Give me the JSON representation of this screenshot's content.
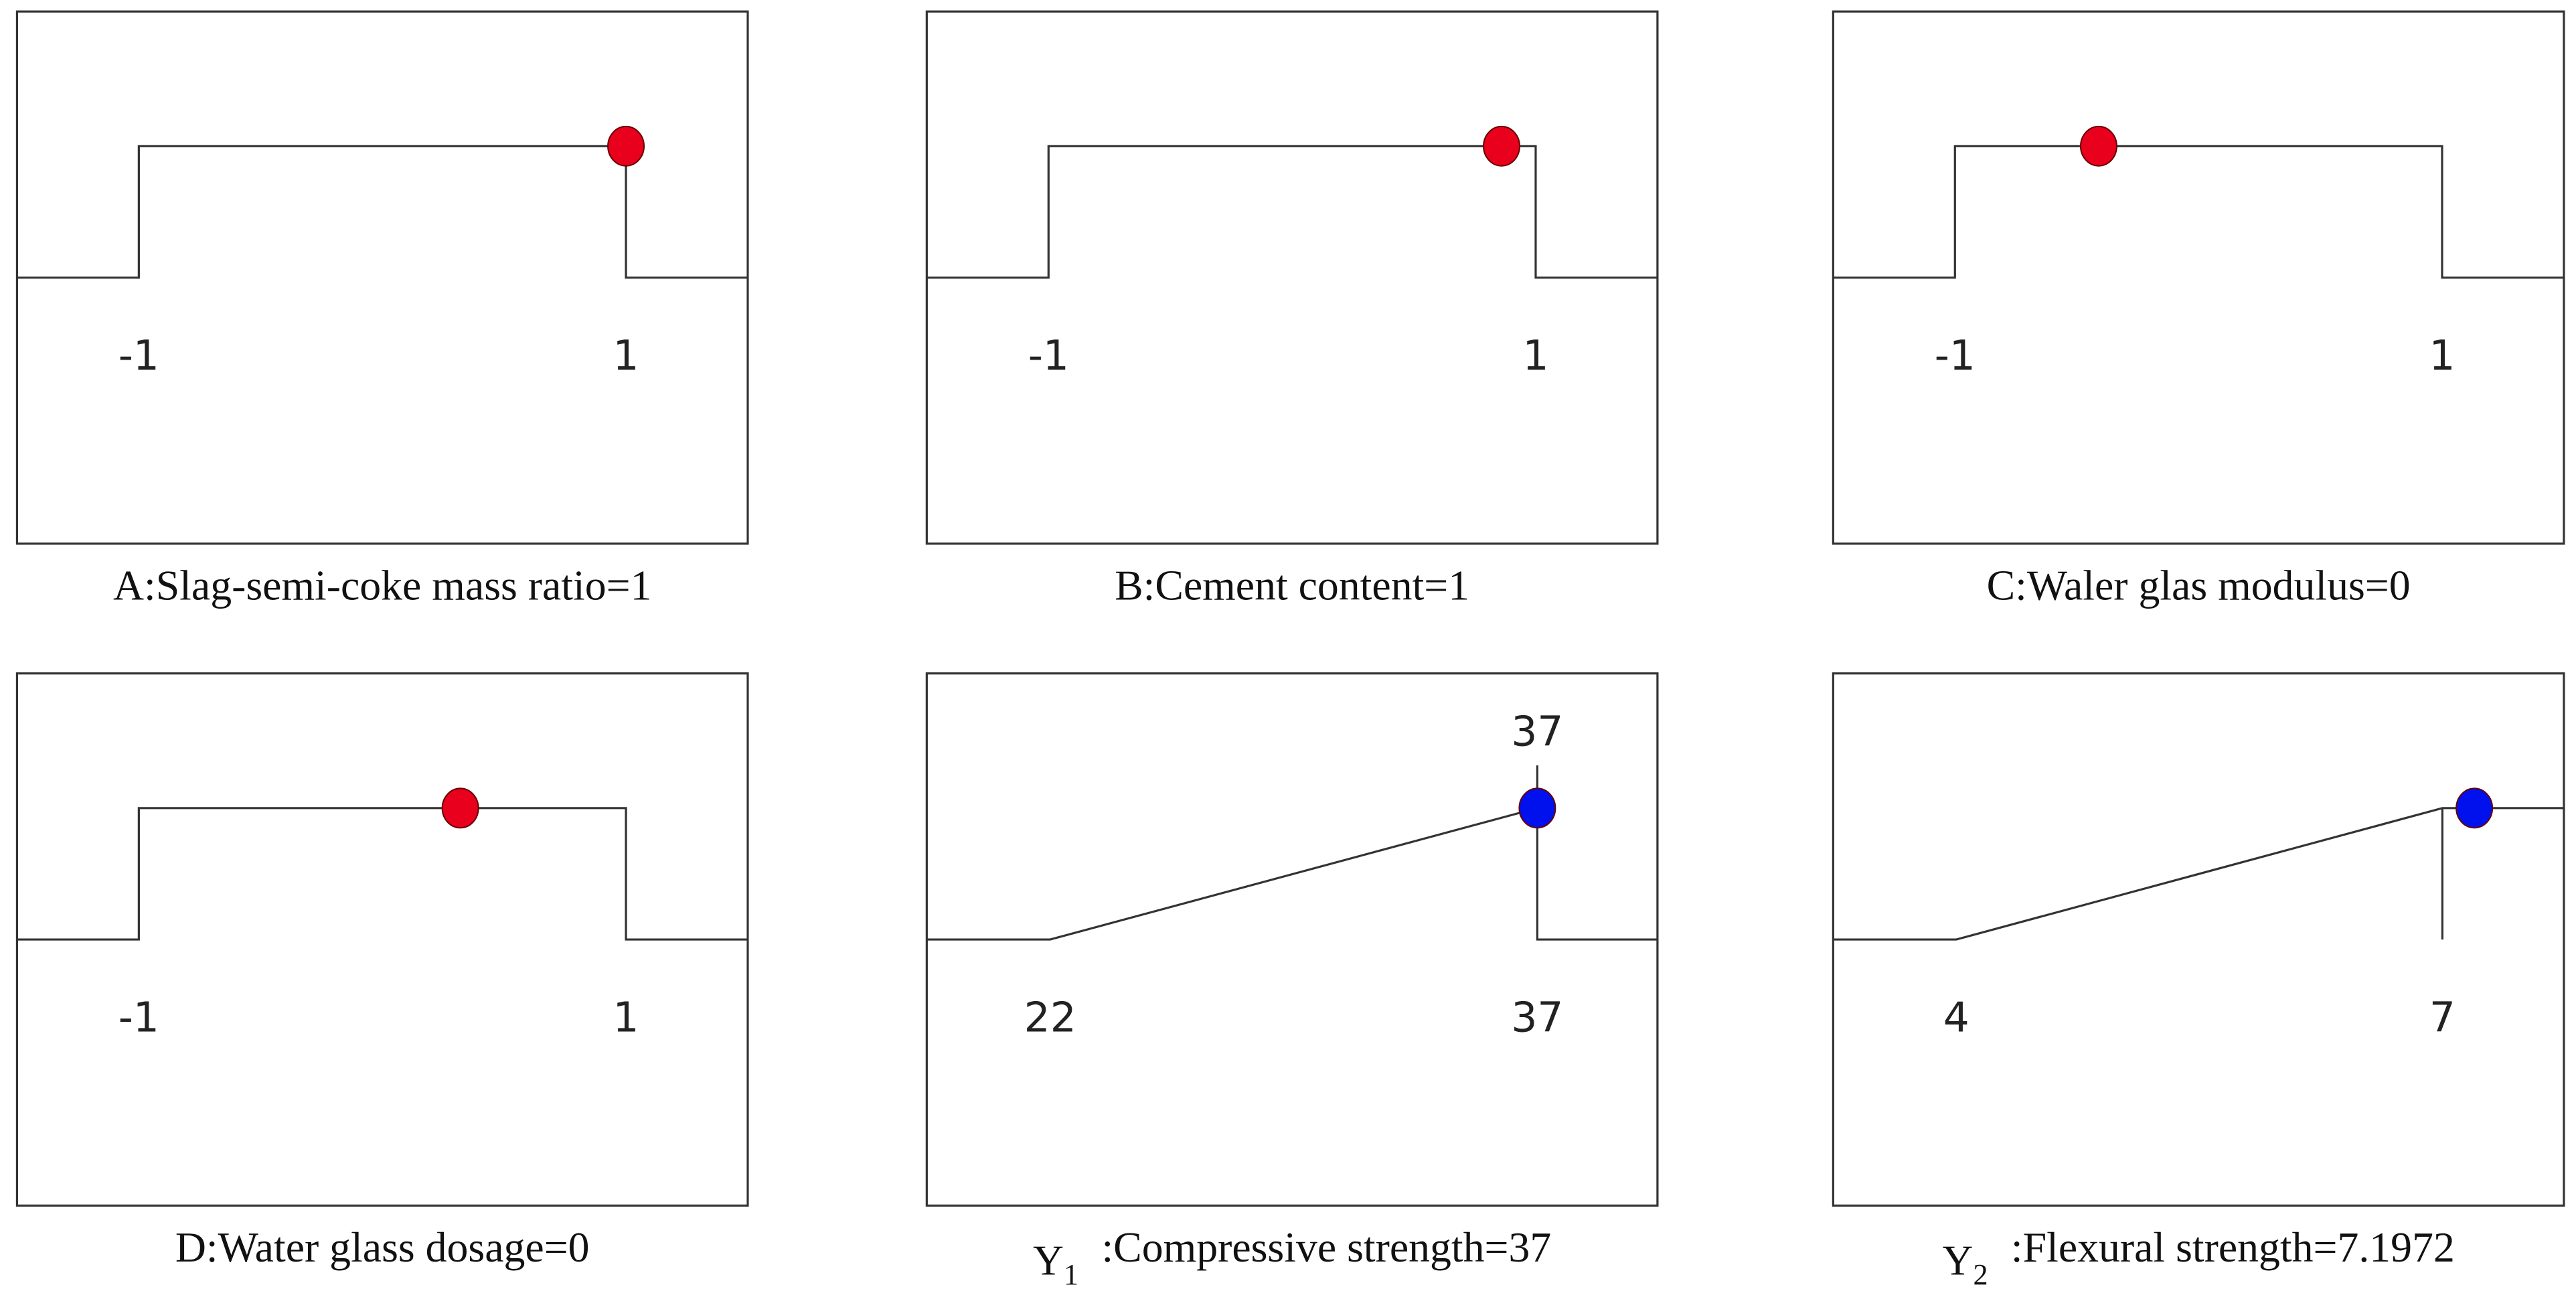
{
  "chart_data": [
    {
      "type": "step",
      "label": "A:Slag-semi-coke mass ratio=1",
      "xlim": [
        -1.5,
        1.5
      ],
      "xticks": [
        -1,
        1
      ],
      "marker": {
        "x": 1,
        "color": "#e8001c"
      }
    },
    {
      "type": "step",
      "label": "B:Cement content=1",
      "xlim": [
        -1.5,
        1.5
      ],
      "xticks": [
        -1,
        1
      ],
      "marker": {
        "x": 0.86,
        "color": "#e8001c"
      }
    },
    {
      "type": "step",
      "label": "C:Waler glas modulus=0",
      "xlim": [
        -1.5,
        1.5
      ],
      "xticks": [
        -1,
        1
      ],
      "marker": {
        "x": -0.41,
        "color": "#e8001c"
      }
    },
    {
      "type": "step",
      "label": "D:Water glass dosage=0",
      "xlim": [
        -1.5,
        1.5
      ],
      "xticks": [
        -1,
        1
      ],
      "marker": {
        "x": 0.32,
        "color": "#e8001c"
      }
    },
    {
      "type": "ramp",
      "tail": "low",
      "show_value_label": true,
      "label_main": "Y",
      "label_sub": "1",
      "label_rest": ":Compressive strength=37",
      "xlim": [
        18.2,
        40.7
      ],
      "xticks": [
        22,
        37
      ],
      "marker": {
        "x": 37,
        "color": "#0011ee"
      }
    },
    {
      "type": "ramp",
      "tail": "high",
      "show_value_label": false,
      "label_main": "Y",
      "label_sub": "2",
      "label_rest": ":Flexural strength=7.1972",
      "xlim": [
        3.24,
        7.75
      ],
      "xticks": [
        4,
        7
      ],
      "marker": {
        "x": 7.1972,
        "color": "#0011ee"
      }
    }
  ]
}
